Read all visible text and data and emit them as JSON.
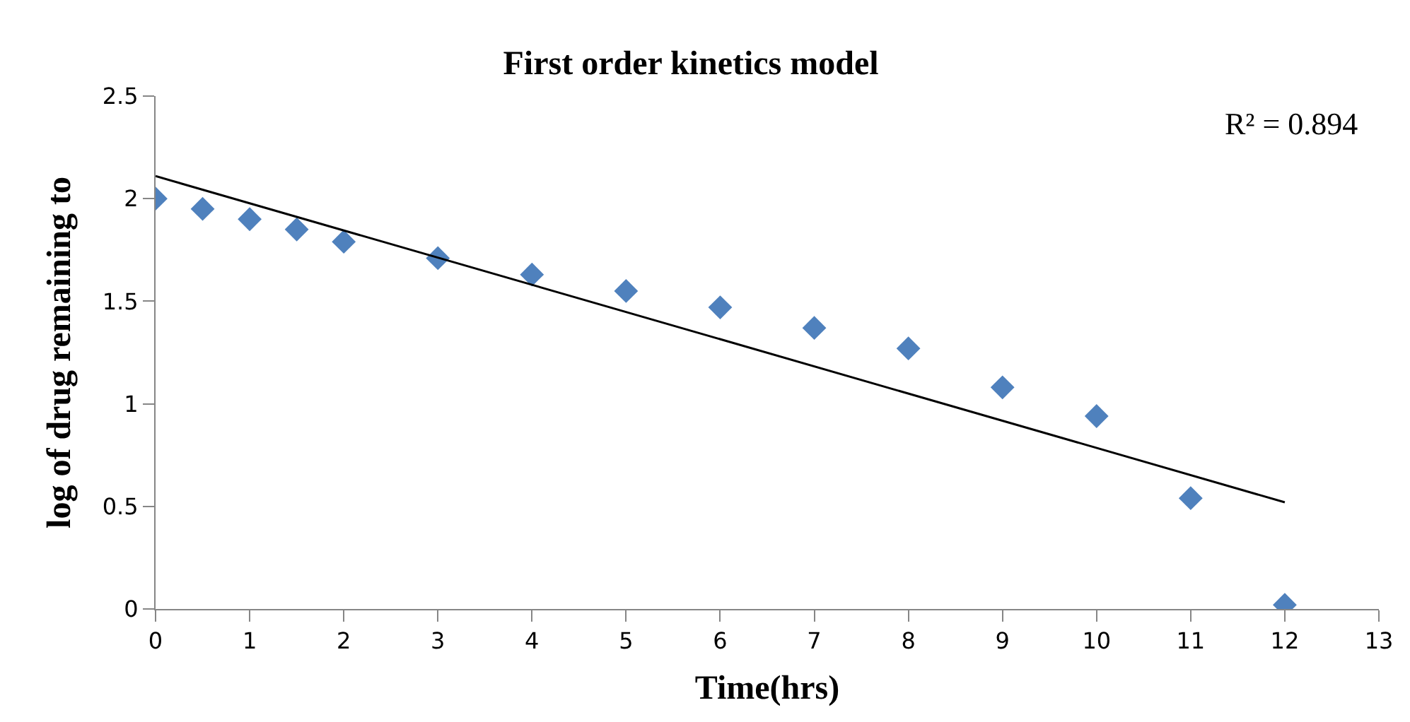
{
  "chart_data": {
    "type": "scatter",
    "title": "First order kinetics model",
    "xlabel": "Time(hrs)",
    "ylabel": "log of drug remaining to",
    "annotations": [
      "R² = 0.894"
    ],
    "x": [
      0,
      0.5,
      1,
      1.5,
      2,
      3,
      4,
      5,
      6,
      7,
      8,
      9,
      10,
      11,
      12
    ],
    "series": [
      {
        "color": "#4f81bd",
        "marker": "diamond",
        "values": [
          2.0,
          1.95,
          1.9,
          1.85,
          1.79,
          1.71,
          1.63,
          1.55,
          1.47,
          1.37,
          1.27,
          1.08,
          0.94,
          0.54,
          0.02
        ]
      },
      {
        "type": "line",
        "color": "#000000",
        "x": [
          0,
          12
        ],
        "values": [
          2.11,
          0.52
        ]
      }
    ],
    "xlim": [
      0,
      13
    ],
    "xticks": [
      0,
      1,
      2,
      3,
      4,
      5,
      6,
      7,
      8,
      9,
      10,
      11,
      12,
      13
    ],
    "ylim": [
      0,
      2.5
    ],
    "yticks": [
      0,
      0.5,
      1,
      1.5,
      2,
      2.5
    ],
    "grid": false,
    "legend": false
  }
}
